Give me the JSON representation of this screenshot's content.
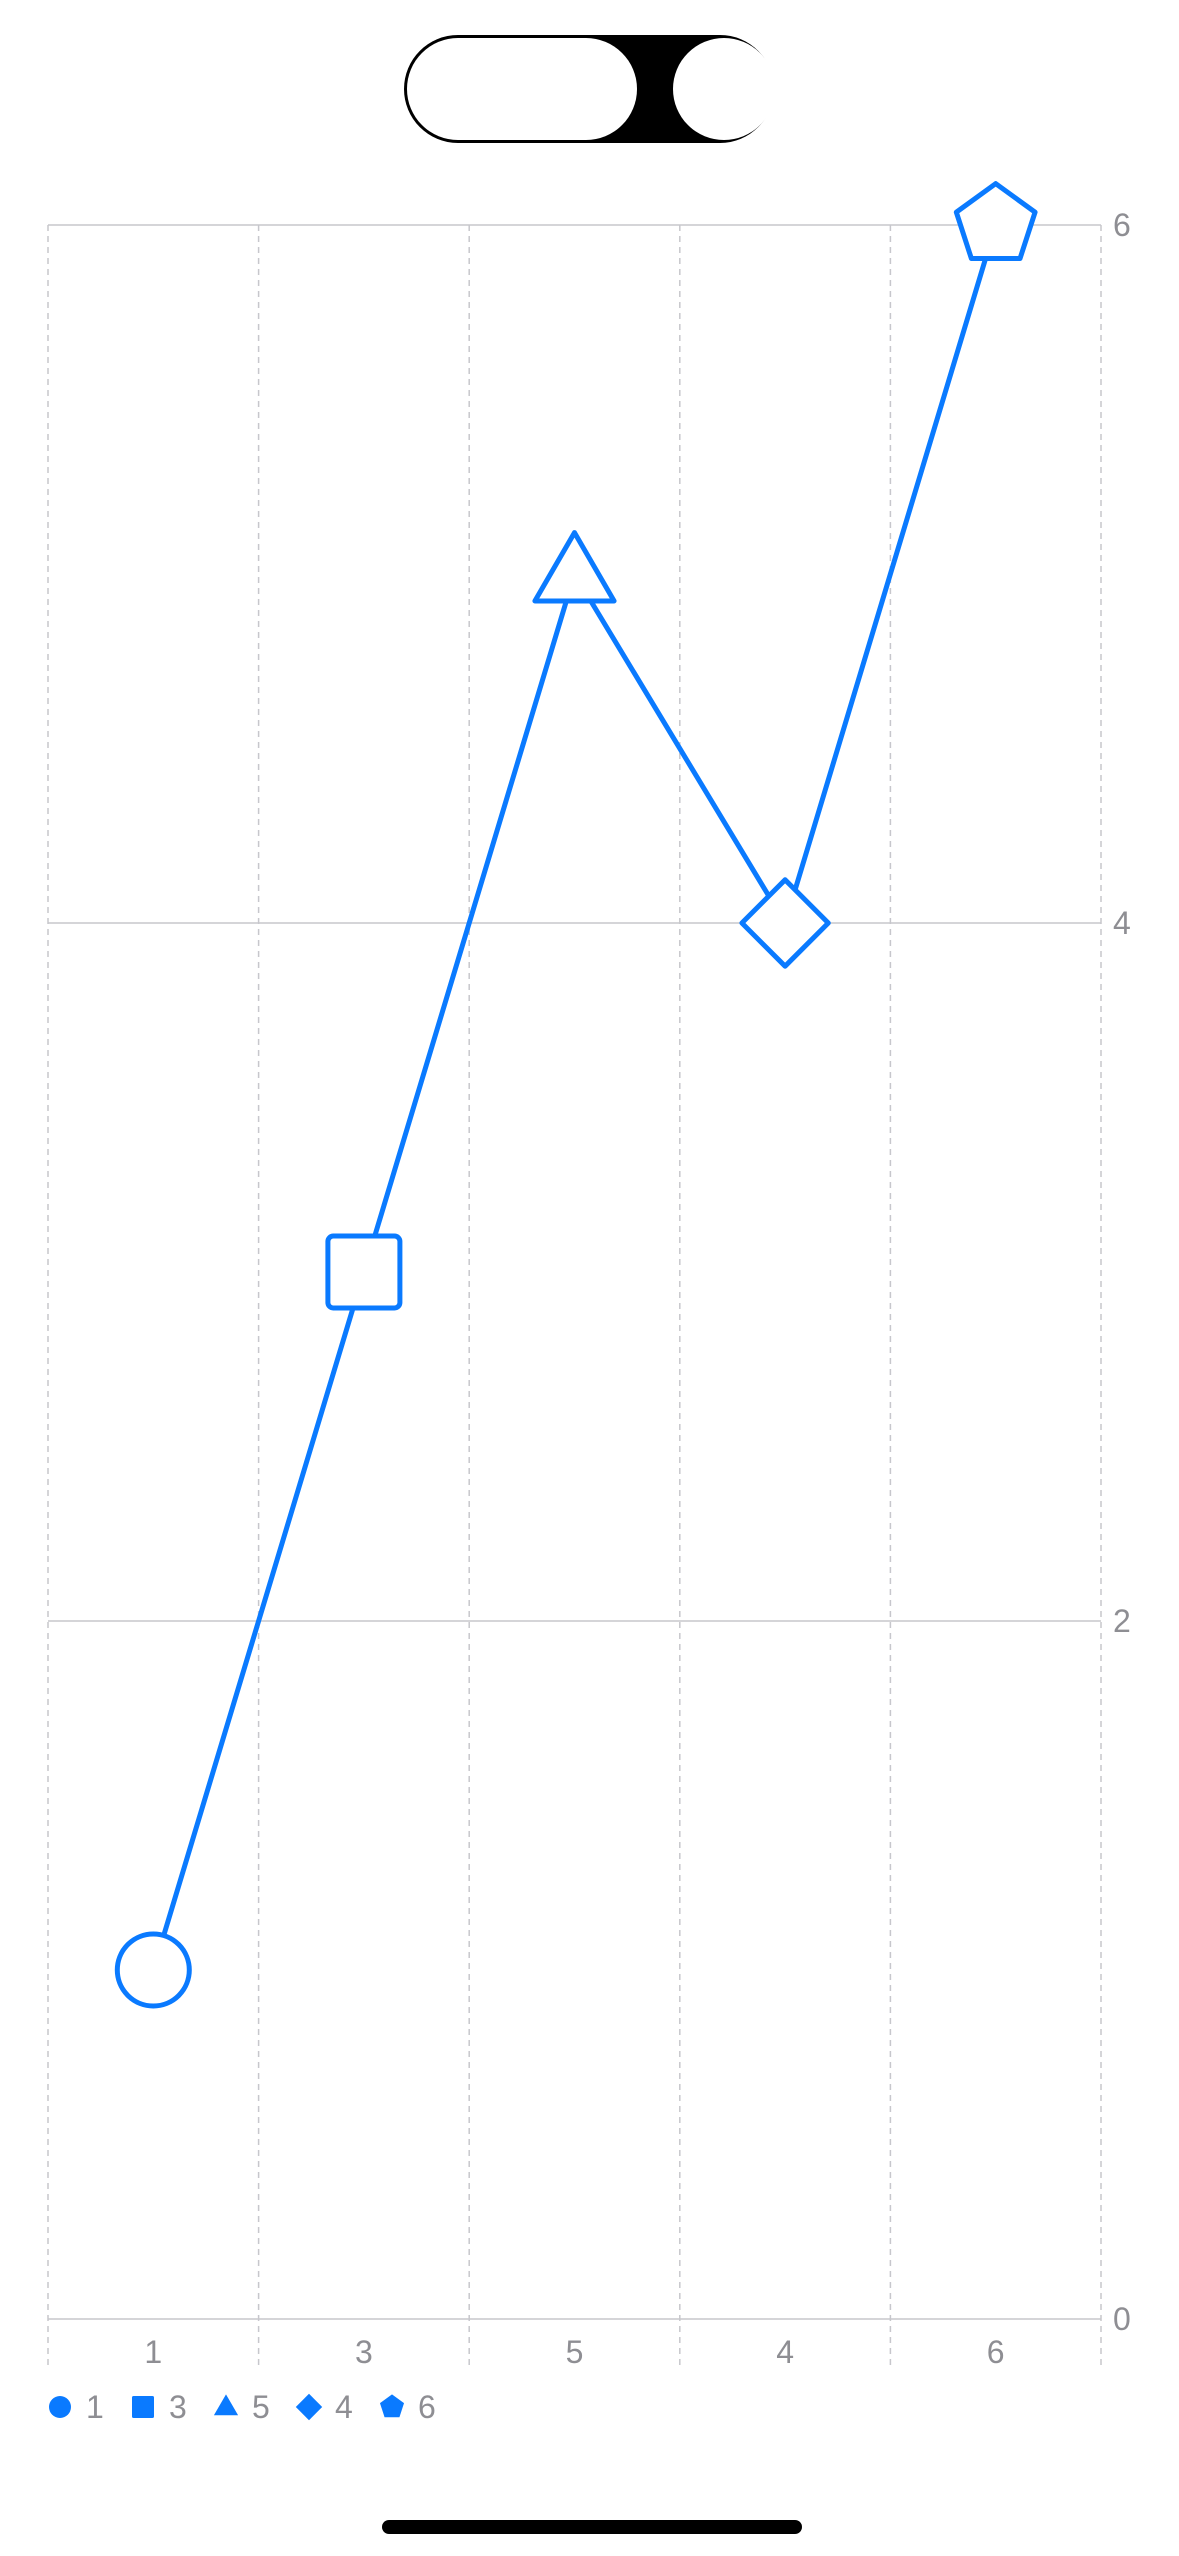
{
  "toggle": {
    "state": "on"
  },
  "colors": {
    "series": "#0a7aff",
    "grid": "#c7c7cc",
    "tick_text": "#8e8e93",
    "background": "#ffffff"
  },
  "chart_data": {
    "type": "line",
    "categories": [
      "1",
      "3",
      "5",
      "4",
      "6"
    ],
    "series": [
      {
        "name": "",
        "values": [
          1,
          3,
          5,
          4,
          6
        ]
      }
    ],
    "symbols": [
      "circle",
      "square",
      "triangle",
      "diamond",
      "pentagon"
    ],
    "ylim": [
      0,
      6
    ],
    "yticks": [
      "0",
      "2",
      "4",
      "6"
    ],
    "y_axis_side": "right",
    "grid": true,
    "legend": {
      "position": "bottom-left",
      "entries": [
        {
          "symbol": "circle",
          "label": "1"
        },
        {
          "symbol": "square",
          "label": "3"
        },
        {
          "symbol": "triangle",
          "label": "5"
        },
        {
          "symbol": "diamond",
          "label": "4"
        },
        {
          "symbol": "pentagon",
          "label": "6"
        }
      ]
    }
  }
}
